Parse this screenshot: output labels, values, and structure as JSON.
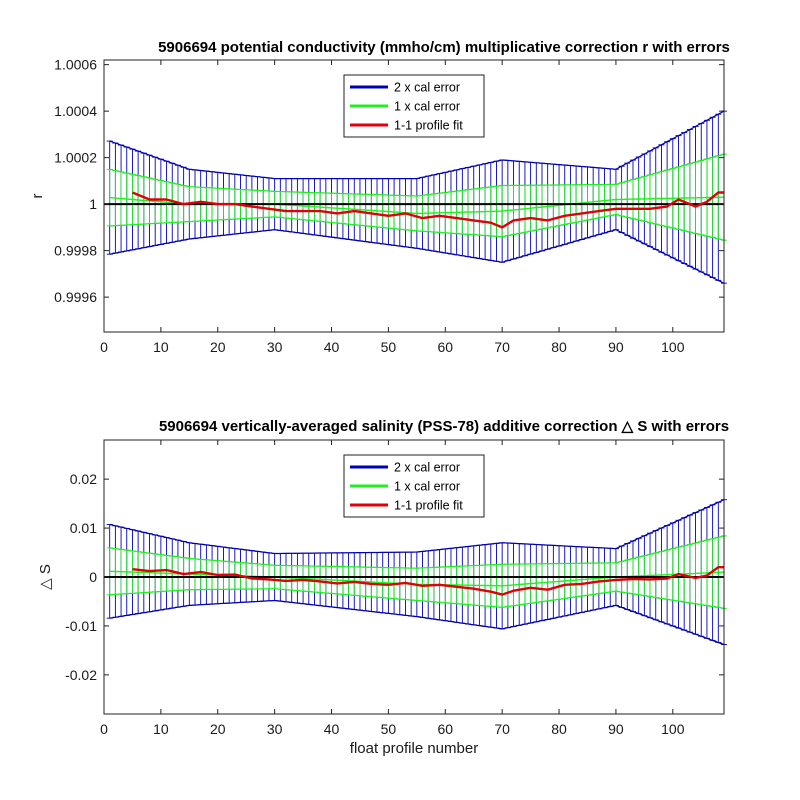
{
  "chart_data": [
    {
      "type": "line",
      "title": "5906694 potential conductivity (mmho/cm) multiplicative correction r with errors",
      "xlabel": "",
      "ylabel": "r",
      "xlim": [
        0,
        109
      ],
      "ylim": [
        0.99945,
        1.00062
      ],
      "xticks": [
        0,
        10,
        20,
        30,
        40,
        50,
        60,
        70,
        80,
        90,
        100
      ],
      "yticks": [
        0.9996,
        0.9998,
        1,
        1.0002,
        1.0004,
        1.0006
      ],
      "ytick_labels": [
        "0.9996",
        "0.9998",
        "1",
        "1.0002",
        "1.0004",
        "1.0006"
      ],
      "grid": false,
      "reference_line": 1,
      "legend_position": "top-center",
      "legend": [
        "2 x cal error",
        "1 x cal error",
        "1-1 profile fit"
      ],
      "colors": {
        "err2": "#0000b3",
        "err1": "#22ee22",
        "fit": "#e0000a",
        "ref": "#000000"
      },
      "errorbar_x": [
        1,
        109
      ],
      "baseline": [
        1.00003,
        1.0,
        1.0,
        0.99996,
        0.99997,
        1.00002,
        1.00003
      ],
      "baseline_x": [
        0,
        15,
        30,
        55,
        70,
        90,
        109
      ],
      "error_2x": [
        0.00025,
        0.00015,
        0.00011,
        0.00015,
        0.00022,
        0.00013,
        0.00037
      ],
      "error_2x_x": [
        0,
        15,
        30,
        55,
        70,
        90,
        109
      ],
      "error_1x_x": [
        0,
        15,
        30,
        55,
        70,
        90,
        109
      ],
      "error_1x": [
        0.000125,
        7.5e-05,
        5.5e-05,
        7.5e-05,
        0.00011,
        6.5e-05,
        0.000185
      ],
      "fit_x": [
        5,
        8,
        11,
        14,
        17,
        20,
        23,
        26,
        29,
        32,
        35,
        38,
        41,
        44,
        47,
        50,
        53,
        56,
        59,
        62,
        65,
        68,
        70,
        72,
        75,
        78,
        81,
        84,
        87,
        90,
        93,
        96,
        99,
        101,
        104,
        106,
        108,
        109
      ],
      "fit_y": [
        1.00005,
        1.00002,
        1.00002,
        1.0,
        1.00001,
        1.0,
        1.0,
        0.99999,
        0.99998,
        0.99997,
        0.99997,
        0.99997,
        0.99996,
        0.99997,
        0.99996,
        0.99995,
        0.99996,
        0.99994,
        0.99995,
        0.99994,
        0.99993,
        0.99992,
        0.9999,
        0.99993,
        0.99994,
        0.99993,
        0.99995,
        0.99996,
        0.99997,
        0.99998,
        0.99998,
        0.99998,
        0.99999,
        1.00002,
        0.99999,
        1.00001,
        1.00005,
        1.00005
      ]
    },
    {
      "type": "line",
      "title": "5906694 vertically-averaged salinity (PSS-78) additive correction △ S with errors",
      "xlabel": "float profile number",
      "ylabel": "△ S",
      "xlim": [
        0,
        109
      ],
      "ylim": [
        -0.028,
        0.028
      ],
      "xticks": [
        0,
        10,
        20,
        30,
        40,
        50,
        60,
        70,
        80,
        90,
        100
      ],
      "yticks": [
        -0.02,
        -0.01,
        0,
        0.01,
        0.02
      ],
      "ytick_labels": [
        "-0.02",
        "-0.01",
        "0",
        "0.01",
        "0.02"
      ],
      "grid": false,
      "reference_line": 0,
      "legend_position": "top-center",
      "legend": [
        "2 x cal error",
        "1 x cal error",
        "1-1 profile fit"
      ],
      "colors": {
        "err2": "#0000b3",
        "err1": "#22ee22",
        "fit": "#e0000a",
        "ref": "#000000"
      },
      "errorbar_x": [
        1,
        109
      ],
      "baseline_x": [
        0,
        15,
        30,
        55,
        70,
        90,
        109
      ],
      "baseline": [
        0.0012,
        0.0006,
        0.0,
        -0.0015,
        -0.0018,
        0.0,
        0.001
      ],
      "error_2x_x": [
        0,
        15,
        30,
        55,
        70,
        90,
        109
      ],
      "error_2x": [
        0.0098,
        0.0064,
        0.0048,
        0.0066,
        0.0088,
        0.0058,
        0.0148
      ],
      "error_1x_x": [
        0,
        15,
        30,
        55,
        70,
        90,
        109
      ],
      "error_1x": [
        0.0049,
        0.0032,
        0.0024,
        0.0033,
        0.0044,
        0.0029,
        0.0074
      ],
      "fit_x": [
        5,
        8,
        11,
        14,
        17,
        20,
        23,
        26,
        29,
        32,
        35,
        38,
        41,
        44,
        47,
        50,
        53,
        56,
        59,
        62,
        65,
        68,
        70,
        72,
        75,
        78,
        81,
        84,
        87,
        90,
        93,
        96,
        99,
        101,
        104,
        106,
        108,
        109
      ],
      "fit_y": [
        0.0016,
        0.0012,
        0.0014,
        0.0006,
        0.001,
        0.0004,
        0.0005,
        -0.0003,
        -0.0005,
        -0.0008,
        -0.0006,
        -0.0009,
        -0.0013,
        -0.001,
        -0.0014,
        -0.0016,
        -0.0012,
        -0.0018,
        -0.0016,
        -0.002,
        -0.0024,
        -0.003,
        -0.0036,
        -0.0028,
        -0.0022,
        -0.0026,
        -0.0016,
        -0.0014,
        -0.0009,
        -0.0006,
        -0.0004,
        -0.0005,
        -0.0003,
        0.0006,
        -0.0002,
        0.0003,
        0.002,
        0.002
      ]
    }
  ]
}
